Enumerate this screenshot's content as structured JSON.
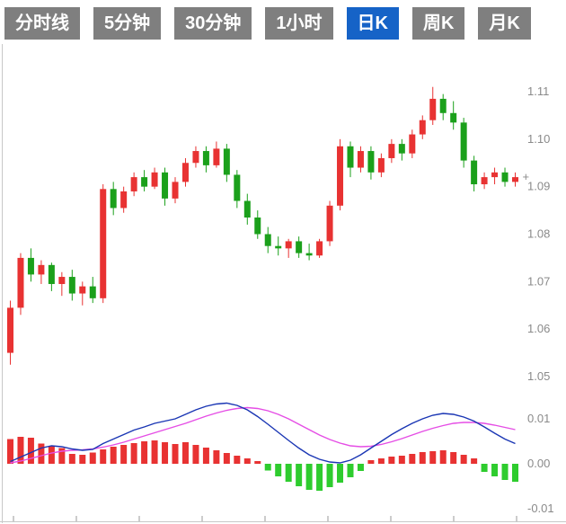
{
  "tabs": {
    "items": [
      {
        "id": "timeline",
        "label": "分时线",
        "active": false
      },
      {
        "id": "5min",
        "label": "5分钟",
        "active": false
      },
      {
        "id": "30min",
        "label": "30分钟",
        "active": false
      },
      {
        "id": "1hour",
        "label": "1小时",
        "active": false
      },
      {
        "id": "daily",
        "label": "日K",
        "active": true
      },
      {
        "id": "weekly",
        "label": "周K",
        "active": false
      },
      {
        "id": "monthly",
        "label": "月K",
        "active": false
      }
    ],
    "active_bg": "#1663c7",
    "inactive_bg": "#7f7f7f",
    "text_color": "#ffffff"
  },
  "chart_data": {
    "type": "candlestick_with_macd",
    "title": "",
    "price_axis": {
      "labels": [
        "1.11",
        "1.10",
        "1.09",
        "1.08",
        "1.07",
        "1.06",
        "1.05"
      ],
      "ticks": [
        1.11,
        1.1,
        1.09,
        1.08,
        1.07,
        1.06,
        1.05
      ],
      "range": [
        1.049,
        1.118
      ]
    },
    "macd_axis": {
      "labels": [
        "0.01",
        "0.00",
        "-0.01"
      ],
      "ticks": [
        0.01,
        0,
        -0.01
      ],
      "range": [
        -0.013,
        0.016
      ]
    },
    "colors": {
      "up": "#e83232",
      "down": "#1ba01b",
      "dif_line": "#1a36b4",
      "dea_line": "#e54de5",
      "axis_text": "#8a8a8a",
      "frame": "#c8c8c8"
    },
    "last_price_marker": "+",
    "candles": [
      [
        1.055,
        1.066,
        1.0525,
        1.0645
      ],
      [
        1.0645,
        1.076,
        1.063,
        1.075
      ],
      [
        1.075,
        1.077,
        1.07,
        1.0715
      ],
      [
        1.0715,
        1.0745,
        1.0695,
        1.0735
      ],
      [
        1.0735,
        1.074,
        1.068,
        1.0695
      ],
      [
        1.0695,
        1.072,
        1.067,
        1.071
      ],
      [
        1.071,
        1.0725,
        1.066,
        1.0675
      ],
      [
        1.0675,
        1.07,
        1.065,
        1.069
      ],
      [
        1.069,
        1.071,
        1.0655,
        1.0665
      ],
      [
        1.0665,
        1.0905,
        1.0655,
        1.0895
      ],
      [
        1.0895,
        1.091,
        1.084,
        1.0855
      ],
      [
        1.0855,
        1.09,
        1.0845,
        1.089
      ],
      [
        1.089,
        1.093,
        1.088,
        1.092
      ],
      [
        1.092,
        1.0935,
        1.089,
        1.09
      ],
      [
        1.09,
        1.094,
        1.0895,
        1.093
      ],
      [
        1.093,
        1.094,
        1.086,
        1.0875
      ],
      [
        1.0875,
        1.092,
        1.0865,
        1.091
      ],
      [
        1.091,
        1.096,
        1.09,
        1.095
      ],
      [
        1.095,
        1.0985,
        1.094,
        1.0975
      ],
      [
        1.0975,
        1.0985,
        1.093,
        1.0945
      ],
      [
        1.0945,
        1.0995,
        1.094,
        1.098
      ],
      [
        1.098,
        1.099,
        1.091,
        1.0925
      ],
      [
        1.0925,
        1.0935,
        1.0855,
        1.087
      ],
      [
        1.087,
        1.0885,
        1.082,
        1.0835
      ],
      [
        1.0835,
        1.085,
        1.079,
        1.08
      ],
      [
        1.08,
        1.0815,
        1.076,
        1.0775
      ],
      [
        1.0775,
        1.0795,
        1.0755,
        1.077
      ],
      [
        1.077,
        1.079,
        1.075,
        1.0785
      ],
      [
        1.0785,
        1.0795,
        1.075,
        1.076
      ],
      [
        1.076,
        1.078,
        1.0745,
        1.0755
      ],
      [
        1.0755,
        1.079,
        1.075,
        1.0785
      ],
      [
        1.0785,
        1.087,
        1.0775,
        1.086
      ],
      [
        1.086,
        1.1,
        1.085,
        1.0985
      ],
      [
        1.0985,
        1.0995,
        1.092,
        1.094
      ],
      [
        1.094,
        1.0985,
        1.093,
        1.0975
      ],
      [
        1.0975,
        1.0985,
        1.0915,
        1.093
      ],
      [
        1.093,
        1.097,
        1.092,
        1.096
      ],
      [
        1.096,
        1.1,
        1.095,
        1.099
      ],
      [
        1.099,
        1.1,
        1.0955,
        1.097
      ],
      [
        1.097,
        1.102,
        1.096,
        1.101
      ],
      [
        1.101,
        1.105,
        1.1,
        1.104
      ],
      [
        1.104,
        1.111,
        1.103,
        1.1085
      ],
      [
        1.1085,
        1.1095,
        1.104,
        1.1055
      ],
      [
        1.1055,
        1.108,
        1.102,
        1.1035
      ],
      [
        1.1035,
        1.1045,
        1.094,
        1.0955
      ],
      [
        1.0955,
        1.0965,
        1.089,
        1.0905
      ],
      [
        1.0905,
        1.093,
        1.0895,
        1.092
      ],
      [
        1.092,
        1.094,
        1.0905,
        1.093
      ],
      [
        1.093,
        1.094,
        1.09,
        1.091
      ],
      [
        1.091,
        1.093,
        1.09,
        1.092
      ]
    ],
    "macd": {
      "dif": [
        0.0005,
        0.0015,
        0.0025,
        0.0035,
        0.004,
        0.0038,
        0.0033,
        0.003,
        0.0032,
        0.0045,
        0.0055,
        0.0065,
        0.0075,
        0.0082,
        0.009,
        0.0095,
        0.01,
        0.011,
        0.012,
        0.0128,
        0.0133,
        0.0135,
        0.013,
        0.012,
        0.0105,
        0.0088,
        0.007,
        0.0052,
        0.0035,
        0.002,
        0.001,
        0.0004,
        0.0002,
        0.0008,
        0.002,
        0.0035,
        0.005,
        0.0065,
        0.0078,
        0.009,
        0.01,
        0.0108,
        0.0112,
        0.011,
        0.0104,
        0.0095,
        0.0082,
        0.0068,
        0.0055,
        0.0045
      ],
      "dea": [
        0.0002,
        0.0006,
        0.0012,
        0.0018,
        0.0024,
        0.0028,
        0.003,
        0.0031,
        0.0033,
        0.0037,
        0.0042,
        0.0048,
        0.0055,
        0.0062,
        0.0069,
        0.0076,
        0.0083,
        0.009,
        0.0098,
        0.0106,
        0.0113,
        0.0119,
        0.0123,
        0.0125,
        0.0123,
        0.0118,
        0.011,
        0.01,
        0.0088,
        0.0076,
        0.0064,
        0.0054,
        0.0046,
        0.004,
        0.0038,
        0.0039,
        0.0043,
        0.0049,
        0.0056,
        0.0064,
        0.0072,
        0.0079,
        0.0085,
        0.009,
        0.0092,
        0.0092,
        0.009,
        0.0086,
        0.0081,
        0.0076
      ],
      "hist": [
        0.0055,
        0.006,
        0.0058,
        0.0045,
        0.004,
        0.0035,
        0.0022,
        0.002,
        0.0025,
        0.0032,
        0.0038,
        0.0042,
        0.0046,
        0.005,
        0.0052,
        0.0048,
        0.0044,
        0.0048,
        0.0042,
        0.0036,
        0.003,
        0.0024,
        0.0018,
        0.0012,
        0.0006,
        -0.0015,
        -0.0028,
        -0.004,
        -0.005,
        -0.0058,
        -0.006,
        -0.0052,
        -0.0042,
        -0.003,
        -0.0016,
        0.0008,
        0.0012,
        0.0016,
        0.0018,
        0.0022,
        0.0026,
        0.0028,
        0.003,
        0.0026,
        0.002,
        0.0012,
        -0.0018,
        -0.0028,
        -0.0036,
        -0.004
      ]
    }
  }
}
